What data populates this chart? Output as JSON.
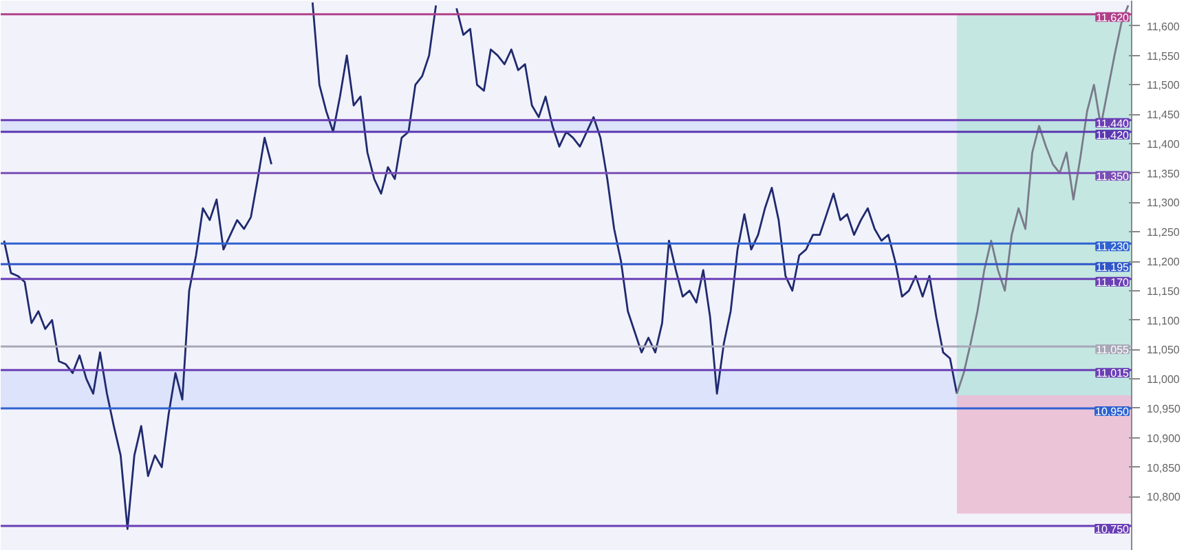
{
  "chart_data": {
    "type": "line",
    "categories": [
      null,
      null,
      null,
      null,
      null,
      null,
      null,
      null,
      null,
      null,
      null,
      null,
      null,
      null,
      null,
      null,
      null,
      null,
      null,
      null,
      null,
      null,
      null,
      null,
      null,
      null,
      null,
      null,
      null,
      null,
      null,
      null,
      null,
      null,
      null,
      null,
      null,
      null,
      null,
      null,
      null,
      null,
      null,
      null,
      null,
      null,
      null,
      null,
      null,
      null,
      null,
      null,
      null,
      null,
      null,
      null,
      null,
      null,
      null,
      null,
      null,
      null,
      null,
      null,
      null,
      null,
      null,
      null,
      null,
      null,
      null,
      null,
      null,
      null,
      null,
      null,
      null,
      null,
      null,
      null,
      null,
      null,
      null,
      null,
      null,
      null,
      null,
      null,
      null,
      null,
      null,
      null,
      null,
      null,
      null,
      null,
      null,
      null,
      null,
      null,
      null,
      null,
      null,
      null,
      null,
      null,
      null,
      null,
      null,
      null,
      null,
      null,
      null,
      null,
      null,
      null,
      null,
      null,
      null,
      null,
      null,
      null,
      null,
      null,
      null,
      null,
      null,
      null,
      null,
      null,
      null,
      null,
      null,
      null,
      null,
      null,
      null,
      null,
      null,
      null,
      null,
      null,
      null,
      null,
      null,
      null,
      null,
      null,
      null,
      null,
      null,
      null,
      null,
      null,
      null,
      null,
      null,
      null,
      null,
      null,
      null,
      null,
      null,
      null,
      null
    ],
    "series": [
      {
        "color": "#1f2a6e",
        "values": [
          11235,
          11180,
          11175,
          11165,
          11095,
          11115,
          11085,
          11100,
          11030,
          11025,
          11010,
          11040,
          11000,
          10975,
          11045,
          10975,
          10920,
          10870,
          10745,
          10870,
          10920,
          10835,
          10870,
          10850,
          10940,
          11010,
          10965,
          11150,
          11210,
          11290,
          11270,
          11305,
          11220,
          11245,
          11270,
          11255,
          11275,
          11340,
          11410,
          11365,
          null,
          null,
          null,
          null,
          null,
          11640,
          11500,
          11455,
          11420,
          11480,
          11550,
          11465,
          11480,
          11385,
          11340,
          11315,
          11360,
          11340,
          11410,
          11420,
          11500,
          11515,
          11550,
          11635,
          null,
          null,
          11630,
          11585,
          11595,
          11500,
          11490,
          11560,
          11550,
          11535,
          11560,
          11525,
          11535,
          11465,
          11445,
          11480,
          11430,
          11395,
          11420,
          11410,
          11395,
          11420,
          11445,
          11410,
          11340,
          11255,
          11200,
          11115,
          11080,
          11045,
          11070,
          11045,
          11095,
          11235,
          11185,
          11140,
          11150,
          11130,
          11185,
          11105,
          10975,
          11060,
          11115,
          11220,
          11280,
          11220,
          11245,
          11290,
          11325,
          11270,
          11175,
          11150,
          11210,
          11220,
          11245,
          11245,
          11280,
          11315,
          11270,
          11280,
          11245,
          11270,
          11290,
          11255,
          11235,
          11245,
          11200,
          11140,
          11150,
          11175,
          11140,
          11175,
          11105,
          11045,
          11035,
          10975,
          null,
          null,
          null,
          null,
          null,
          null,
          null,
          null,
          null,
          null,
          null,
          null,
          null,
          null,
          null,
          null,
          null,
          null,
          null,
          null,
          null,
          null,
          null,
          null,
          null
        ]
      },
      {
        "color": "#7a7a8a",
        "values": [
          null,
          null,
          null,
          null,
          null,
          null,
          null,
          null,
          null,
          null,
          null,
          null,
          null,
          null,
          null,
          null,
          null,
          null,
          null,
          null,
          null,
          null,
          null,
          null,
          null,
          null,
          null,
          null,
          null,
          null,
          null,
          null,
          null,
          null,
          null,
          null,
          null,
          null,
          null,
          null,
          null,
          null,
          null,
          null,
          null,
          null,
          null,
          null,
          null,
          null,
          null,
          null,
          null,
          null,
          null,
          null,
          null,
          null,
          null,
          null,
          null,
          null,
          null,
          null,
          null,
          null,
          null,
          null,
          null,
          null,
          null,
          null,
          null,
          null,
          null,
          null,
          null,
          null,
          null,
          null,
          null,
          null,
          null,
          null,
          null,
          null,
          null,
          null,
          null,
          null,
          null,
          null,
          null,
          null,
          null,
          null,
          null,
          null,
          null,
          null,
          null,
          null,
          null,
          null,
          null,
          null,
          null,
          null,
          null,
          null,
          null,
          null,
          null,
          null,
          null,
          null,
          null,
          null,
          null,
          null,
          null,
          null,
          null,
          null,
          null,
          null,
          null,
          null,
          null,
          null,
          null,
          null,
          null,
          null,
          null,
          null,
          null,
          null,
          null,
          10975,
          11010,
          11060,
          11115,
          11185,
          11235,
          11185,
          11150,
          11245,
          11290,
          11255,
          11385,
          11430,
          11395,
          11365,
          11350,
          11385,
          11305,
          11375,
          11455,
          11500,
          11430,
          11490,
          11550,
          11605,
          11635
        ]
      }
    ],
    "ylim": [
      10708,
      11643
    ],
    "yticks": [
      {
        "value": 10800,
        "label": "10,800"
      },
      {
        "value": 10850,
        "label": "10,850"
      },
      {
        "value": 10900,
        "label": "10,900"
      },
      {
        "value": 10950,
        "label": "10,950"
      },
      {
        "value": 11000,
        "label": "11,000"
      },
      {
        "value": 11050,
        "label": "11,050"
      },
      {
        "value": 11100,
        "label": "11,100"
      },
      {
        "value": 11150,
        "label": "11,150"
      },
      {
        "value": 11200,
        "label": "11,200"
      },
      {
        "value": 11250,
        "label": "11,250"
      },
      {
        "value": 11300,
        "label": "11,300"
      },
      {
        "value": 11350,
        "label": "11,350"
      },
      {
        "value": 11400,
        "label": "11,400"
      },
      {
        "value": 11450,
        "label": "11,450"
      },
      {
        "value": 11500,
        "label": "11,500"
      },
      {
        "value": 11550,
        "label": "11,550"
      },
      {
        "value": 11600,
        "label": "11,600"
      }
    ],
    "tick_labels": "y",
    "grid": false,
    "line_style": "solid",
    "marker": "none",
    "bands": [
      {
        "axis": "y",
        "from": 11420,
        "to": 11440,
        "label": null,
        "color": "#d6defa"
      },
      {
        "axis": "y",
        "from": 10950,
        "to": 11015,
        "label": null,
        "color": "#d6defa"
      },
      {
        "axis": "y",
        "from": 10972,
        "to": 11620,
        "label": null,
        "color": "#b8e3dc"
      },
      {
        "axis": "y",
        "from": 10771,
        "to": 10972,
        "label": null,
        "color": "#eab8cf"
      }
    ],
    "ref_lines": [
      {
        "axis": "y",
        "value": 11620,
        "label": "11,620",
        "color": "#b0408a"
      },
      {
        "axis": "y",
        "value": 11440,
        "label": "11,440",
        "color": "#6a3fb5"
      },
      {
        "axis": "y",
        "value": 11420,
        "label": "11,420",
        "color": "#5a38b0"
      },
      {
        "axis": "y",
        "value": 11350,
        "label": "11,350",
        "color": "#7a4fb5"
      },
      {
        "axis": "y",
        "value": 11230,
        "label": "11,230",
        "color": "#2f62d0"
      },
      {
        "axis": "y",
        "value": 11195,
        "label": "11,195",
        "color": "#2f55c8"
      },
      {
        "axis": "y",
        "value": 11170,
        "label": "11,170",
        "color": "#6a3fb5"
      },
      {
        "axis": "y",
        "value": 11055,
        "label": "11,055",
        "color": "#a8a8b8"
      },
      {
        "axis": "y",
        "value": 11015,
        "label": "11,015",
        "color": "#6a3fb5"
      },
      {
        "axis": "y",
        "value": 10950,
        "label": "10,950",
        "color": "#2f62d0"
      },
      {
        "axis": "y",
        "value": 10750,
        "label": "10,750",
        "color": "#6a3fb5"
      }
    ]
  }
}
